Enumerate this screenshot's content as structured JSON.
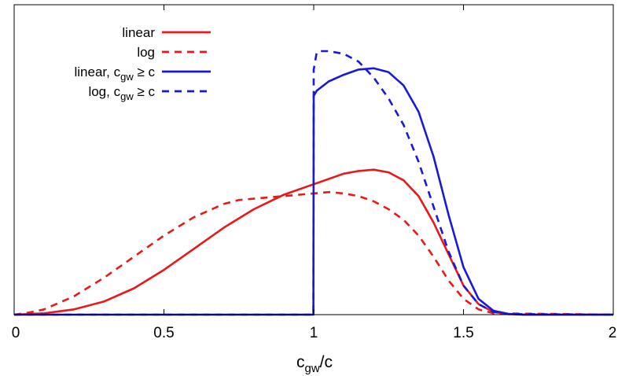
{
  "chart_data": {
    "type": "line",
    "title": "",
    "xlabel": "c_gw/c",
    "xlabel_parts": {
      "base": "c",
      "sub": "gw",
      "rest": "/c"
    },
    "ylabel": "",
    "xlim": [
      0,
      2
    ],
    "ylim": [
      0,
      1.0
    ],
    "xticks": [
      "0",
      "0.5",
      "1",
      "1.5",
      "2"
    ],
    "xtick_values": [
      0,
      0.5,
      1,
      1.5,
      2
    ],
    "grid": false,
    "legend_position": "top-left",
    "series": [
      {
        "name": "linear",
        "label_parts": {
          "pre": "linear",
          "base": "",
          "sub": "",
          "post": ""
        },
        "color": "#e8191b",
        "dash": "solid",
        "x": [
          0,
          0.1,
          0.2,
          0.3,
          0.4,
          0.5,
          0.6,
          0.7,
          0.8,
          0.9,
          1.0,
          1.05,
          1.1,
          1.15,
          1.2,
          1.25,
          1.3,
          1.35,
          1.4,
          1.45,
          1.5,
          1.55,
          1.6,
          1.65,
          1.7,
          2.0
        ],
        "y": [
          0,
          0.005,
          0.02,
          0.05,
          0.1,
          0.17,
          0.25,
          0.33,
          0.4,
          0.455,
          0.495,
          0.515,
          0.535,
          0.545,
          0.55,
          0.54,
          0.51,
          0.45,
          0.35,
          0.23,
          0.11,
          0.04,
          0.01,
          0.002,
          0,
          0
        ]
      },
      {
        "name": "log",
        "label_parts": {
          "pre": "log",
          "base": "",
          "sub": "",
          "post": ""
        },
        "color": "#e8191b",
        "dash": "dashed",
        "x": [
          0,
          0.05,
          0.1,
          0.2,
          0.3,
          0.4,
          0.5,
          0.6,
          0.7,
          0.75,
          0.8,
          0.85,
          0.9,
          0.95,
          1.0,
          1.05,
          1.1,
          1.15,
          1.2,
          1.25,
          1.3,
          1.35,
          1.4,
          1.45,
          1.5,
          1.55,
          1.6,
          2.0
        ],
        "y": [
          0,
          0.008,
          0.02,
          0.07,
          0.14,
          0.22,
          0.3,
          0.37,
          0.42,
          0.435,
          0.44,
          0.445,
          0.45,
          0.455,
          0.46,
          0.465,
          0.46,
          0.45,
          0.43,
          0.4,
          0.36,
          0.3,
          0.22,
          0.13,
          0.06,
          0.02,
          0.005,
          0
        ]
      },
      {
        "name": "linear, c_gw ≥ c",
        "label_parts": {
          "pre": "linear, ",
          "base": "c",
          "sub": "gw",
          "post": " ≥ c"
        },
        "color": "#1a1ad6",
        "dash": "solid",
        "x": [
          0,
          0.999,
          1.0,
          1.01,
          1.05,
          1.1,
          1.15,
          1.2,
          1.25,
          1.3,
          1.35,
          1.4,
          1.45,
          1.5,
          1.55,
          1.6,
          1.65,
          1.7,
          2.0
        ],
        "y": [
          0,
          0,
          0.83,
          0.85,
          0.885,
          0.91,
          0.93,
          0.935,
          0.92,
          0.87,
          0.77,
          0.6,
          0.38,
          0.18,
          0.06,
          0.015,
          0.003,
          0,
          0
        ]
      },
      {
        "name": "log, c_gw ≥ c",
        "label_parts": {
          "pre": "log, ",
          "base": "c",
          "sub": "gw",
          "post": " ≥ c"
        },
        "color": "#1a1ad6",
        "dash": "dashed",
        "x": [
          0,
          0.999,
          1.0,
          1.01,
          1.02,
          1.05,
          1.1,
          1.15,
          1.2,
          1.25,
          1.3,
          1.35,
          1.4,
          1.45,
          1.5,
          1.55,
          1.6,
          1.65,
          2.0
        ],
        "y": [
          0,
          0,
          0.93,
          0.995,
          1.0,
          1.0,
          0.99,
          0.96,
          0.9,
          0.82,
          0.72,
          0.58,
          0.41,
          0.24,
          0.11,
          0.04,
          0.01,
          0.002,
          0
        ]
      }
    ]
  }
}
